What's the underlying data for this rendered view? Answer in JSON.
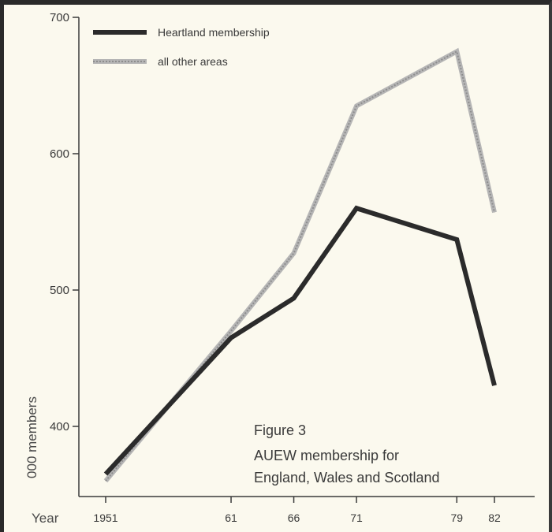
{
  "chart_data": {
    "type": "line",
    "x": [
      1951,
      1961,
      1966,
      1971,
      1979,
      1982
    ],
    "x_tick_labels": [
      "1951",
      "61",
      "66",
      "71",
      "79",
      "82"
    ],
    "series": [
      {
        "name": "Heartland membership",
        "values": [
          365,
          465,
          494,
          560,
          537,
          430
        ],
        "color": "#2b2b2b"
      },
      {
        "name": "all other areas",
        "values": [
          360,
          470,
          527,
          635,
          675,
          557
        ],
        "color": "#b5b5b5"
      }
    ],
    "y_ticks": [
      400,
      500,
      600,
      700
    ],
    "ylim": [
      345,
      700
    ],
    "xlim": [
      1950,
      1984
    ],
    "ylabel": "000 members",
    "xlabel": "Year",
    "annotation": {
      "figure": "Figure 3",
      "caption_line1": "AUEW membership for",
      "caption_line2": "England, Wales and Scotland"
    },
    "legend_position": "top-left",
    "grid": false
  }
}
